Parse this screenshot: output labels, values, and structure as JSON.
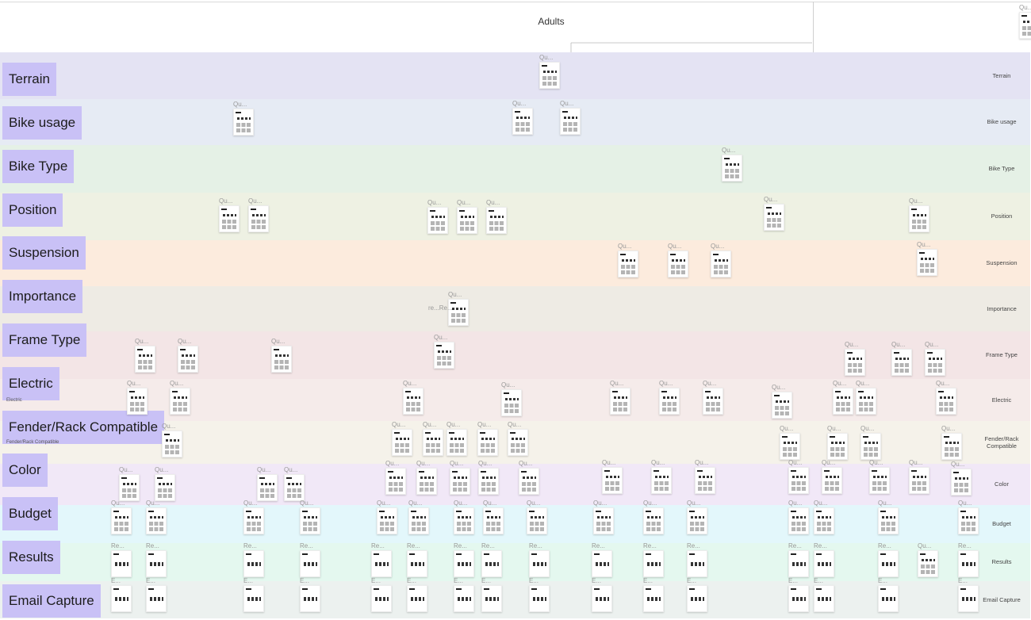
{
  "header": {
    "title": "Adults"
  },
  "lanes": [
    {
      "label": "Terrain",
      "right_label": "Terrain",
      "color": "#e4e3f3"
    },
    {
      "label": "Bike usage",
      "right_label": "Bike usage",
      "color": "#e6ebf4"
    },
    {
      "label": "Bike Type",
      "right_label": "Bike Type",
      "color": "#e5f1e6"
    },
    {
      "label": "Position",
      "right_label": "Position",
      "color": "#eef1e3"
    },
    {
      "label": "Suspension",
      "right_label": "Suspension",
      "color": "#fcebdd"
    },
    {
      "label": "Importance",
      "right_label": "Importance",
      "color": "#eeebe4"
    },
    {
      "label": "Frame Type",
      "right_label": "Frame Type",
      "color": "#f3e5e6"
    },
    {
      "label": "Electric",
      "right_label": "Electric",
      "color": "#f5ebea"
    },
    {
      "label": "Fender/Rack Compatible",
      "right_label": "Fender/Rack Compatible",
      "color": "#f5f2ea"
    },
    {
      "label": "Color",
      "right_label": "Color",
      "color": "#f1e8f7"
    },
    {
      "label": "Budget",
      "right_label": "Budget",
      "color": "#e3f7fb"
    },
    {
      "label": "Results",
      "right_label": "Results",
      "color": "#e4f8ef"
    },
    {
      "label": "Email Capture",
      "right_label": "Email Capture",
      "color": "#ecf1ef"
    }
  ],
  "nodes": {
    "question_label": "Qu...",
    "result_label": "Re...",
    "email_label": "E...",
    "importance_extra_label": "re...Re..."
  },
  "small_lane_text": {
    "electric": "Electric",
    "fender": "Fender/Rack Compatible"
  },
  "colors": {
    "lane_label_bg": "#c9c1f6",
    "connector": "#b9b9b9"
  }
}
